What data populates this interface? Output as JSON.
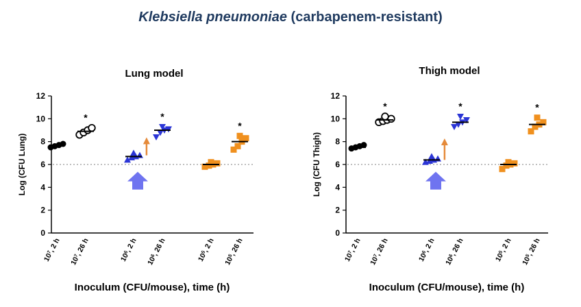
{
  "page_title": {
    "italic_part": "Klebsiella pneumoniae",
    "rest": " (carbapenem-resistant)"
  },
  "colors": {
    "black_group": "#000000",
    "blue_group": "#2b35d6",
    "orange_group": "#f0901e",
    "arrow_blue": "#6f74f0",
    "arrow_orange": "#e58a3a",
    "ref_line": "#999999"
  },
  "chart_data": [
    {
      "type": "scatter",
      "title": "Lung model",
      "ylabel": "Log (CFU Lung)",
      "xlabel": "Inoculum (CFU/mouse), time (h)",
      "ylim": [
        0,
        12
      ],
      "yticks": [
        0,
        2,
        4,
        6,
        8,
        10,
        12
      ],
      "reference_line": 6,
      "categories": [
        {
          "base": "10",
          "exp": "7",
          "suffix": ", 2 h"
        },
        {
          "base": "10",
          "exp": "7",
          "suffix": ", 26 h"
        },
        {
          "base": "10",
          "exp": "6",
          "suffix": ", 2 h"
        },
        {
          "base": "10",
          "exp": "6",
          "suffix": ", 26 h"
        },
        {
          "base": "10",
          "exp": "5",
          "suffix": ", 2 h"
        },
        {
          "base": "10",
          "exp": "5",
          "suffix": ", 26 h"
        }
      ],
      "groups": [
        {
          "category": 0,
          "color": "black_group",
          "marker": "circle-filled",
          "values": [
            7.5,
            7.6,
            7.7,
            7.8
          ],
          "median": 7.65,
          "star": ""
        },
        {
          "category": 1,
          "color": "black_group",
          "marker": "circle-open",
          "values": [
            8.6,
            8.8,
            9.0,
            9.2
          ],
          "median": 8.9,
          "star": "*"
        },
        {
          "category": 2,
          "color": "blue_group",
          "marker": "triangle-up",
          "values": [
            6.4,
            6.6,
            6.7,
            6.8,
            7.0
          ],
          "median": 6.7,
          "star": ""
        },
        {
          "category": 3,
          "color": "blue_group",
          "marker": "triangle-down",
          "values": [
            8.4,
            8.8,
            9.0,
            9.1,
            9.3
          ],
          "median": 9.0,
          "star": "*"
        },
        {
          "category": 4,
          "color": "orange_group",
          "marker": "square",
          "values": [
            5.8,
            5.9,
            6.0,
            6.1,
            6.2
          ],
          "median": 6.0,
          "star": ""
        },
        {
          "category": 5,
          "color": "orange_group",
          "marker": "square",
          "values": [
            7.3,
            7.6,
            8.0,
            8.3,
            8.5
          ],
          "median": 8.0,
          "star": "*"
        }
      ]
    },
    {
      "type": "scatter",
      "title": "Thigh model",
      "ylabel": "Log (CFU Thigh)",
      "xlabel": "Inoculum (CFU/mouse), time (h)",
      "ylim": [
        0,
        12
      ],
      "yticks": [
        0,
        2,
        4,
        6,
        8,
        10,
        12
      ],
      "reference_line": 6,
      "categories": [
        {
          "base": "10",
          "exp": "7",
          "suffix": ", 2 h"
        },
        {
          "base": "10",
          "exp": "7",
          "suffix": ", 26 h"
        },
        {
          "base": "10",
          "exp": "6",
          "suffix": ", 2 h"
        },
        {
          "base": "10",
          "exp": "6",
          "suffix": ", 26 h"
        },
        {
          "base": "10",
          "exp": "5",
          "suffix": ", 2 h"
        },
        {
          "base": "10",
          "exp": "5",
          "suffix": ", 26 h"
        }
      ],
      "groups": [
        {
          "category": 0,
          "color": "black_group",
          "marker": "circle-filled",
          "values": [
            7.4,
            7.5,
            7.6,
            7.7
          ],
          "median": 7.5,
          "star": ""
        },
        {
          "category": 1,
          "color": "black_group",
          "marker": "circle-open",
          "values": [
            9.7,
            9.8,
            9.9,
            10.0,
            10.2
          ],
          "median": 9.9,
          "star": "*"
        },
        {
          "category": 2,
          "color": "blue_group",
          "marker": "triangle-up",
          "values": [
            6.2,
            6.3,
            6.4,
            6.5,
            6.7
          ],
          "median": 6.4,
          "star": ""
        },
        {
          "category": 3,
          "color": "blue_group",
          "marker": "triangle-down",
          "values": [
            9.3,
            9.5,
            9.7,
            9.9,
            10.2
          ],
          "median": 9.7,
          "star": "*"
        },
        {
          "category": 4,
          "color": "orange_group",
          "marker": "square",
          "values": [
            5.6,
            5.9,
            6.0,
            6.1,
            6.2
          ],
          "median": 6.0,
          "star": ""
        },
        {
          "category": 5,
          "color": "orange_group",
          "marker": "square",
          "values": [
            8.9,
            9.3,
            9.5,
            9.7,
            10.1
          ],
          "median": 9.5,
          "star": "*"
        }
      ]
    }
  ]
}
